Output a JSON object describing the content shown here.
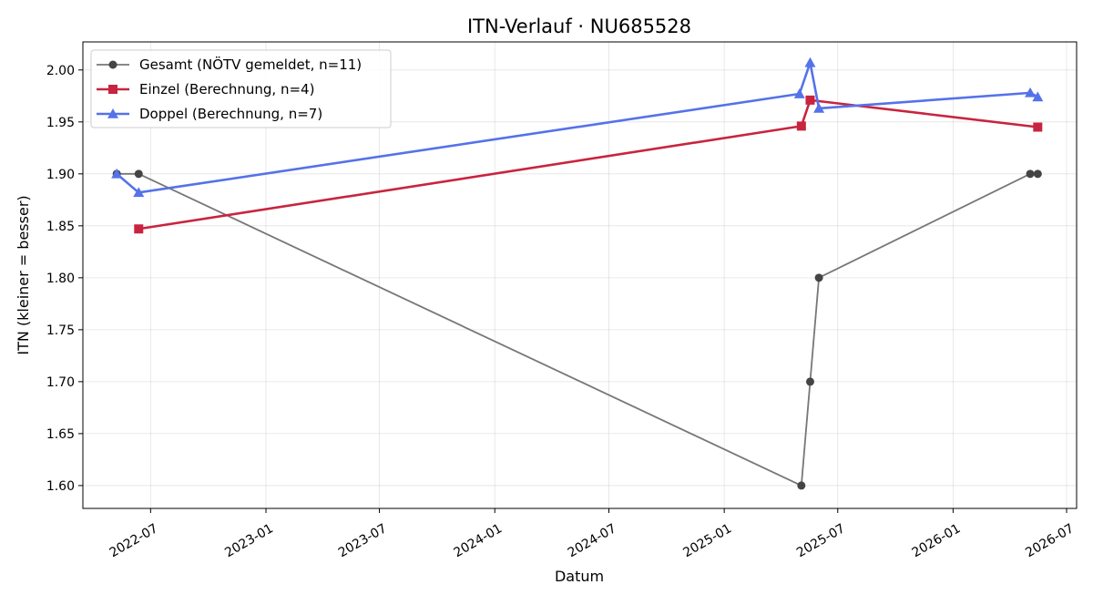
{
  "chart_data": {
    "type": "line",
    "title": "ITN-Verlauf · NU685528",
    "xlabel": "Datum",
    "ylabel": "ITN  (kleiner = besser)",
    "x_type": "date",
    "xlim": [
      "2022-03-15",
      "2026-07-17"
    ],
    "ylim": [
      1.578,
      2.027
    ],
    "x_ticks": [
      "2022-07-01",
      "2023-01-01",
      "2023-07-01",
      "2024-01-01",
      "2024-07-01",
      "2025-01-01",
      "2025-07-01",
      "2026-01-01",
      "2026-07-01"
    ],
    "x_tick_labels": [
      "2022-07",
      "2023-01",
      "2023-07",
      "2024-01",
      "2024-07",
      "2025-01",
      "2025-07",
      "2026-01",
      "2026-07"
    ],
    "y_ticks": [
      1.6,
      1.65,
      1.7,
      1.75,
      1.8,
      1.85,
      1.9,
      1.95,
      2.0
    ],
    "y_tick_labels": [
      "1.60",
      "1.65",
      "1.70",
      "1.75",
      "1.80",
      "1.85",
      "1.90",
      "1.95",
      "2.00"
    ],
    "grid": true,
    "legend_position": "top-left",
    "series": [
      {
        "name": "Gesamt (NÖTV gemeldet, n=11)",
        "color": "#777777",
        "marker_color": "#444444",
        "marker": "circle",
        "points": [
          {
            "x": "2022-05-08",
            "y": 1.9
          },
          {
            "x": "2022-06-12",
            "y": 1.9
          },
          {
            "x": "2025-05-04",
            "y": 1.6
          },
          {
            "x": "2025-05-18",
            "y": 1.7
          },
          {
            "x": "2025-06-01",
            "y": 1.8
          },
          {
            "x": "2026-05-04",
            "y": 1.9
          },
          {
            "x": "2026-05-16",
            "y": 1.9
          }
        ]
      },
      {
        "name": "Einzel (Berechnung, n=4)",
        "color": "#c8243f",
        "marker_color": "#c8243f",
        "marker": "square",
        "points": [
          {
            "x": "2022-06-12",
            "y": 1.847
          },
          {
            "x": "2025-05-04",
            "y": 1.946
          },
          {
            "x": "2025-05-18",
            "y": 1.971
          },
          {
            "x": "2026-05-16",
            "y": 1.945
          }
        ]
      },
      {
        "name": "Doppel (Berechnung, n=7)",
        "color": "#5572ea",
        "marker_color": "#5572ea",
        "marker": "triangle",
        "points": [
          {
            "x": "2022-05-08",
            "y": 1.9
          },
          {
            "x": "2022-06-12",
            "y": 1.882
          },
          {
            "x": "2025-05-01",
            "y": 1.977
          },
          {
            "x": "2025-05-18",
            "y": 2.007
          },
          {
            "x": "2025-06-01",
            "y": 1.963
          },
          {
            "x": "2026-05-04",
            "y": 1.978
          },
          {
            "x": "2026-05-16",
            "y": 1.974
          }
        ]
      }
    ]
  }
}
